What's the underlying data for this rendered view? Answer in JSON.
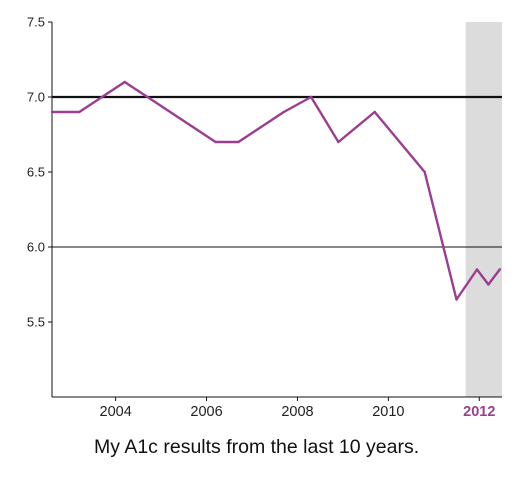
{
  "caption": "My A1c results from the last 10 years.",
  "colors": {
    "series": "#9b3d91",
    "highlight_band": "#dcdcdc",
    "target_line": "#111111",
    "highlight_tick": "#9b3d91"
  },
  "chart_data": {
    "type": "line",
    "title": "",
    "xlabel": "",
    "ylabel": "",
    "xlim": [
      2002.6,
      2012.5
    ],
    "ylim": [
      5.0,
      7.5
    ],
    "y_ticks": [
      {
        "value": 7.5,
        "label": "7.5"
      },
      {
        "value": 7.0,
        "label": "7.0"
      },
      {
        "value": 6.5,
        "label": "6.5"
      },
      {
        "value": 6.0,
        "label": "6.0"
      },
      {
        "value": 5.5,
        "label": "5.5"
      }
    ],
    "x_ticks": [
      {
        "value": 2004,
        "label": "2004"
      },
      {
        "value": 2006,
        "label": "2006"
      },
      {
        "value": 2008,
        "label": "2008"
      },
      {
        "value": 2010,
        "label": "2010"
      },
      {
        "value": 2012,
        "label": "2012",
        "highlight": true
      }
    ],
    "highlight_band": [
      2011.7,
      2012.5
    ],
    "reference_lines": [
      {
        "y": 7.0,
        "style": "bold"
      },
      {
        "y": 6.0,
        "style": "thin"
      }
    ],
    "grid": false,
    "series": [
      {
        "x": [
          2002.6,
          2003.2,
          2003.7,
          2004.2,
          2004.7,
          2005.2,
          2005.7,
          2006.2,
          2006.7,
          2007.2,
          2007.7,
          2008.3,
          2008.9,
          2009.7,
          2010.8,
          2011.5,
          2011.95,
          2012.2,
          2012.45
        ],
        "y": [
          6.9,
          6.9,
          7.0,
          7.1,
          7.0,
          6.9,
          6.8,
          6.7,
          6.7,
          6.8,
          6.9,
          7.0,
          6.7,
          6.9,
          6.5,
          5.65,
          5.85,
          5.75,
          5.85
        ]
      }
    ]
  }
}
